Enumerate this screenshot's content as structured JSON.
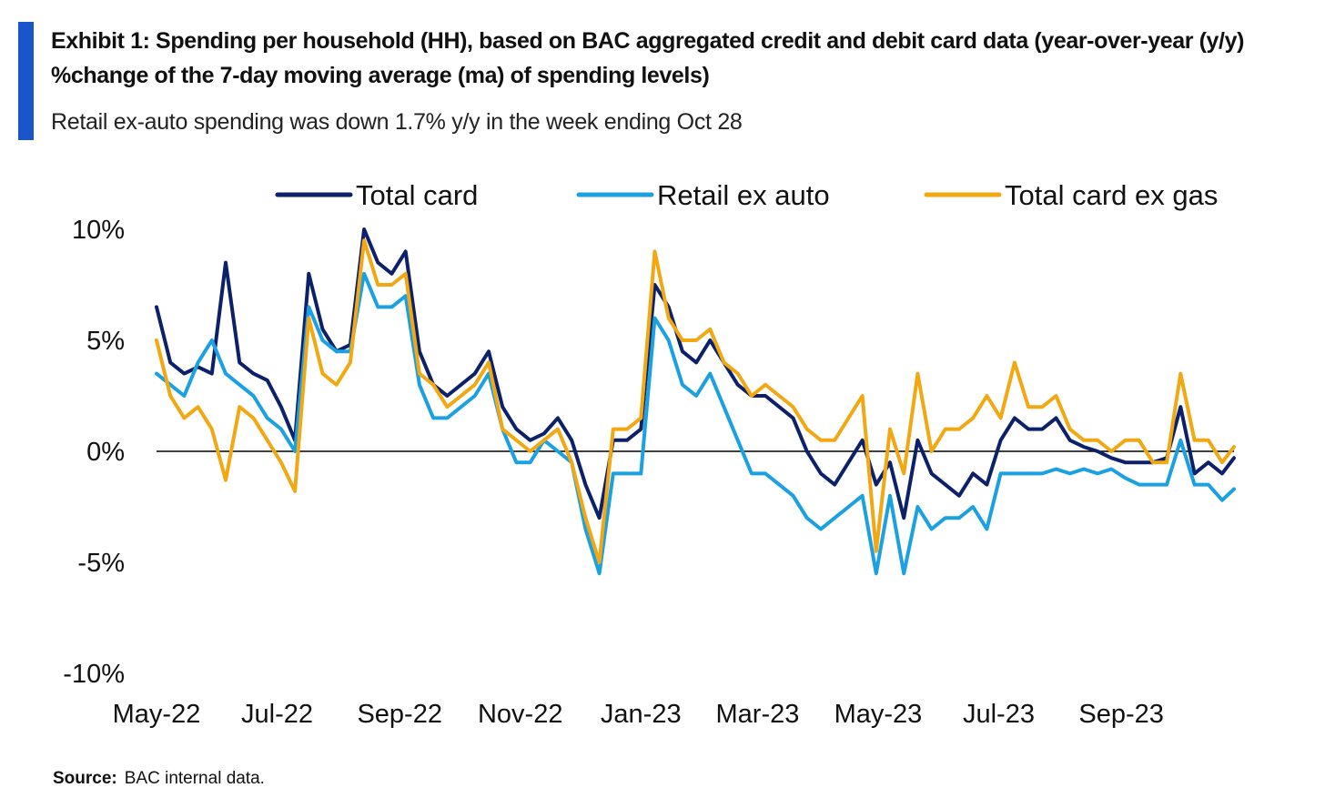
{
  "header": {
    "title": "Exhibit 1: Spending per household (HH), based on BAC aggregated credit and debit card data (year-over-year (y/y)  %change of the 7-day moving average (ma)  of spending levels)",
    "subtitle": "Retail ex-auto spending was down 1.7% y/y in the week ending Oct 28"
  },
  "footer": {
    "source_label": "Source:",
    "source_text": "BAC internal data."
  },
  "colors": {
    "accent": "#1a56c9",
    "total_card": "#0c2169",
    "retail_ex_auto": "#1ba1e2",
    "total_card_ex_gas": "#f1a813",
    "zero_line": "#000000"
  },
  "chart_data": {
    "type": "line",
    "title": "",
    "xlabel": "",
    "ylabel": "",
    "ylim": [
      -10,
      10
    ],
    "y_ticks": [
      10,
      5,
      0,
      -5,
      -10
    ],
    "y_tick_labels": [
      "10%",
      "5%",
      "0%",
      "-5%",
      "-10%"
    ],
    "x_range": [
      "2022-05-01",
      "2023-10-28"
    ],
    "x_ticks": [
      "2022-05-01",
      "2022-07-01",
      "2022-09-01",
      "2022-11-01",
      "2023-01-01",
      "2023-03-01",
      "2023-05-01",
      "2023-07-01",
      "2023-09-01"
    ],
    "x_tick_labels": [
      "May-22",
      "Jul-22",
      "Sep-22",
      "Nov-22",
      "Jan-23",
      "Mar-23",
      "May-23",
      "Jul-23",
      "Sep-23"
    ],
    "legend_position": "top",
    "grid": false,
    "series": [
      {
        "name": "Total card",
        "color": "#0c2169",
        "x": [
          "2022-05-01",
          "2022-05-08",
          "2022-05-15",
          "2022-05-22",
          "2022-05-29",
          "2022-06-05",
          "2022-06-12",
          "2022-06-19",
          "2022-06-26",
          "2022-07-03",
          "2022-07-10",
          "2022-07-17",
          "2022-07-24",
          "2022-07-31",
          "2022-08-07",
          "2022-08-14",
          "2022-08-21",
          "2022-08-28",
          "2022-09-04",
          "2022-09-11",
          "2022-09-18",
          "2022-09-25",
          "2022-10-02",
          "2022-10-09",
          "2022-10-16",
          "2022-10-23",
          "2022-10-30",
          "2022-11-06",
          "2022-11-13",
          "2022-11-20",
          "2022-11-27",
          "2022-12-04",
          "2022-12-11",
          "2022-12-18",
          "2022-12-25",
          "2023-01-01",
          "2023-01-08",
          "2023-01-15",
          "2023-01-22",
          "2023-01-29",
          "2023-02-05",
          "2023-02-12",
          "2023-02-19",
          "2023-02-26",
          "2023-03-05",
          "2023-03-12",
          "2023-03-19",
          "2023-03-26",
          "2023-04-02",
          "2023-04-09",
          "2023-04-16",
          "2023-04-23",
          "2023-04-30",
          "2023-05-07",
          "2023-05-14",
          "2023-05-21",
          "2023-05-28",
          "2023-06-04",
          "2023-06-11",
          "2023-06-18",
          "2023-06-25",
          "2023-07-02",
          "2023-07-09",
          "2023-07-16",
          "2023-07-23",
          "2023-07-30",
          "2023-08-06",
          "2023-08-13",
          "2023-08-20",
          "2023-08-27",
          "2023-09-03",
          "2023-09-10",
          "2023-09-17",
          "2023-09-24",
          "2023-10-01",
          "2023-10-08",
          "2023-10-15",
          "2023-10-22",
          "2023-10-28"
        ],
        "values": [
          6.5,
          4.0,
          3.5,
          3.8,
          3.5,
          8.5,
          4.0,
          3.5,
          3.2,
          2.0,
          0.5,
          8.0,
          5.5,
          4.5,
          4.8,
          10.0,
          8.5,
          8.0,
          9.0,
          4.5,
          3.0,
          2.5,
          3.0,
          3.5,
          4.5,
          2.0,
          1.0,
          0.5,
          0.8,
          1.5,
          0.5,
          -1.5,
          -3.0,
          0.5,
          0.5,
          1.0,
          7.5,
          6.5,
          4.5,
          4.0,
          5.0,
          4.0,
          3.0,
          2.5,
          2.5,
          2.0,
          1.5,
          0.0,
          -1.0,
          -1.5,
          -0.5,
          0.5,
          -1.5,
          -0.5,
          -3.0,
          0.5,
          -1.0,
          -1.5,
          -2.0,
          -1.0,
          -1.5,
          0.5,
          1.5,
          1.0,
          1.0,
          1.5,
          0.5,
          0.2,
          0.0,
          -0.3,
          -0.5,
          -0.5,
          -0.5,
          -0.3,
          2.0,
          -1.0,
          -0.5,
          -1.0,
          -0.3
        ]
      },
      {
        "name": "Retail ex auto",
        "color": "#1ba1e2",
        "x": [
          "2022-05-01",
          "2022-05-08",
          "2022-05-15",
          "2022-05-22",
          "2022-05-29",
          "2022-06-05",
          "2022-06-12",
          "2022-06-19",
          "2022-06-26",
          "2022-07-03",
          "2022-07-10",
          "2022-07-17",
          "2022-07-24",
          "2022-07-31",
          "2022-08-07",
          "2022-08-14",
          "2022-08-21",
          "2022-08-28",
          "2022-09-04",
          "2022-09-11",
          "2022-09-18",
          "2022-09-25",
          "2022-10-02",
          "2022-10-09",
          "2022-10-16",
          "2022-10-23",
          "2022-10-30",
          "2022-11-06",
          "2022-11-13",
          "2022-11-20",
          "2022-11-27",
          "2022-12-04",
          "2022-12-11",
          "2022-12-18",
          "2022-12-25",
          "2023-01-01",
          "2023-01-08",
          "2023-01-15",
          "2023-01-22",
          "2023-01-29",
          "2023-02-05",
          "2023-02-12",
          "2023-02-19",
          "2023-02-26",
          "2023-03-05",
          "2023-03-12",
          "2023-03-19",
          "2023-03-26",
          "2023-04-02",
          "2023-04-09",
          "2023-04-16",
          "2023-04-23",
          "2023-04-30",
          "2023-05-07",
          "2023-05-14",
          "2023-05-21",
          "2023-05-28",
          "2023-06-04",
          "2023-06-11",
          "2023-06-18",
          "2023-06-25",
          "2023-07-02",
          "2023-07-09",
          "2023-07-16",
          "2023-07-23",
          "2023-07-30",
          "2023-08-06",
          "2023-08-13",
          "2023-08-20",
          "2023-08-27",
          "2023-09-03",
          "2023-09-10",
          "2023-09-17",
          "2023-09-24",
          "2023-10-01",
          "2023-10-08",
          "2023-10-15",
          "2023-10-22",
          "2023-10-28"
        ],
        "values": [
          3.5,
          3.0,
          2.5,
          4.0,
          5.0,
          3.5,
          3.0,
          2.5,
          1.5,
          1.0,
          0.0,
          6.5,
          5.0,
          4.5,
          4.5,
          8.0,
          6.5,
          6.5,
          7.0,
          3.0,
          1.5,
          1.5,
          2.0,
          2.5,
          3.5,
          1.0,
          -0.5,
          -0.5,
          0.5,
          0.0,
          -0.5,
          -3.5,
          -5.5,
          -1.0,
          -1.0,
          -1.0,
          6.0,
          5.0,
          3.0,
          2.5,
          3.5,
          2.0,
          0.5,
          -1.0,
          -1.0,
          -1.5,
          -2.0,
          -3.0,
          -3.5,
          -3.0,
          -2.5,
          -2.0,
          -5.5,
          -2.0,
          -5.5,
          -2.5,
          -3.5,
          -3.0,
          -3.0,
          -2.5,
          -3.5,
          -1.0,
          -1.0,
          -1.0,
          -1.0,
          -0.8,
          -1.0,
          -0.8,
          -1.0,
          -0.8,
          -1.2,
          -1.5,
          -1.5,
          -1.5,
          0.5,
          -1.5,
          -1.5,
          -2.2,
          -1.7
        ]
      },
      {
        "name": "Total card ex gas",
        "color": "#f1a813",
        "x": [
          "2022-05-01",
          "2022-05-08",
          "2022-05-15",
          "2022-05-22",
          "2022-05-29",
          "2022-06-05",
          "2022-06-12",
          "2022-06-19",
          "2022-06-26",
          "2022-07-03",
          "2022-07-10",
          "2022-07-17",
          "2022-07-24",
          "2022-07-31",
          "2022-08-07",
          "2022-08-14",
          "2022-08-21",
          "2022-08-28",
          "2022-09-04",
          "2022-09-11",
          "2022-09-18",
          "2022-09-25",
          "2022-10-02",
          "2022-10-09",
          "2022-10-16",
          "2022-10-23",
          "2022-10-30",
          "2022-11-06",
          "2022-11-13",
          "2022-11-20",
          "2022-11-27",
          "2022-12-04",
          "2022-12-11",
          "2022-12-18",
          "2022-12-25",
          "2023-01-01",
          "2023-01-08",
          "2023-01-15",
          "2023-01-22",
          "2023-01-29",
          "2023-02-05",
          "2023-02-12",
          "2023-02-19",
          "2023-02-26",
          "2023-03-05",
          "2023-03-12",
          "2023-03-19",
          "2023-03-26",
          "2023-04-02",
          "2023-04-09",
          "2023-04-16",
          "2023-04-23",
          "2023-04-30",
          "2023-05-07",
          "2023-05-14",
          "2023-05-21",
          "2023-05-28",
          "2023-06-04",
          "2023-06-11",
          "2023-06-18",
          "2023-06-25",
          "2023-07-02",
          "2023-07-09",
          "2023-07-16",
          "2023-07-23",
          "2023-07-30",
          "2023-08-06",
          "2023-08-13",
          "2023-08-20",
          "2023-08-27",
          "2023-09-03",
          "2023-09-10",
          "2023-09-17",
          "2023-09-24",
          "2023-10-01",
          "2023-10-08",
          "2023-10-15",
          "2023-10-22",
          "2023-10-28"
        ],
        "values": [
          5.0,
          2.5,
          1.5,
          2.0,
          1.0,
          -1.3,
          2.0,
          1.5,
          0.5,
          -0.5,
          -1.8,
          6.0,
          3.5,
          3.0,
          4.0,
          9.5,
          7.5,
          7.5,
          8.0,
          3.5,
          3.0,
          2.0,
          2.5,
          3.0,
          4.0,
          1.0,
          0.5,
          0.0,
          0.5,
          1.0,
          -0.5,
          -3.0,
          -5.0,
          1.0,
          1.0,
          1.5,
          9.0,
          6.0,
          5.0,
          5.0,
          5.5,
          4.0,
          3.5,
          2.5,
          3.0,
          2.5,
          2.0,
          1.0,
          0.5,
          0.5,
          1.5,
          2.5,
          -4.5,
          1.0,
          -1.0,
          3.5,
          0.0,
          1.0,
          1.0,
          1.5,
          2.5,
          1.5,
          4.0,
          2.0,
          2.0,
          2.5,
          1.0,
          0.5,
          0.5,
          0.0,
          0.5,
          0.5,
          -0.5,
          -0.5,
          3.5,
          0.5,
          0.5,
          -0.5,
          0.2
        ]
      }
    ]
  }
}
